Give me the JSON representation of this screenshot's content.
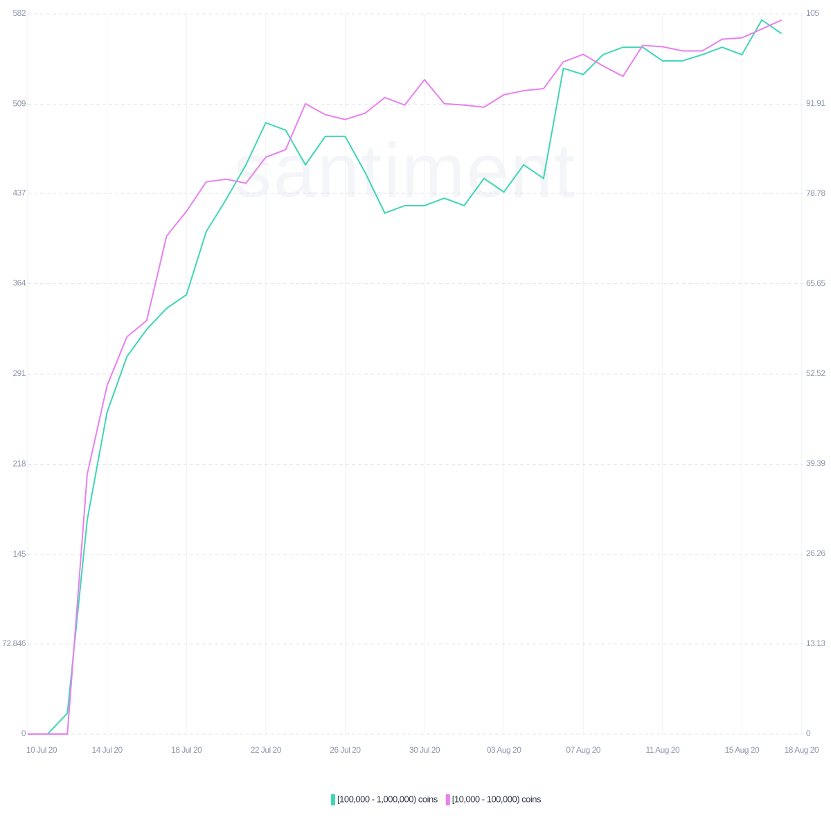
{
  "chart_data": {
    "type": "line",
    "watermark": "santiment",
    "categories": [
      "10 Jul 20",
      null,
      null,
      null,
      "14 Jul 20",
      null,
      null,
      null,
      "18 Jul 20",
      null,
      null,
      null,
      "22 Jul 20",
      null,
      null,
      null,
      "26 Jul 20",
      null,
      null,
      null,
      "30 Jul 20",
      null,
      null,
      null,
      "03 Aug 20",
      null,
      null,
      null,
      "07 Aug 20",
      null,
      null,
      null,
      "11 Aug 20",
      null,
      null,
      null,
      "15 Aug 20",
      null,
      null,
      "18 Aug 20"
    ],
    "series": [
      {
        "name": "[100,000 - 1,000,000) coins",
        "color": "#3ed6b5",
        "values": [
          0,
          0,
          16.8,
          173,
          260,
          305,
          327,
          344,
          355,
          406,
          432,
          460,
          494,
          488,
          460,
          483,
          483,
          454,
          421,
          427,
          427,
          433,
          427,
          449,
          438,
          460,
          449,
          538,
          533,
          549,
          555,
          555,
          544,
          544,
          549,
          555,
          549,
          577,
          566,
          null
        ]
      },
      {
        "name": "[10,000 - 100,000) coins",
        "color": "#e97ff0",
        "axis": "y2",
        "values": [
          0,
          0,
          0,
          37.9,
          50.8,
          57.9,
          60.3,
          72.6,
          76.2,
          80.5,
          80.9,
          80.3,
          84.1,
          85.2,
          91.9,
          90.3,
          89.6,
          90.5,
          92.8,
          91.7,
          95.4,
          91.9,
          91.7,
          91.4,
          93.2,
          93.8,
          94.1,
          98.0,
          99.1,
          97.4,
          95.9,
          100.4,
          100.2,
          99.6,
          99.6,
          101.3,
          101.5,
          102.8,
          104.1,
          null
        ]
      }
    ],
    "ylim": [
      0,
      582
    ],
    "yticks": [
      0,
      72.846,
      145,
      218,
      291,
      364,
      437,
      509,
      582
    ],
    "y2lim": [
      0,
      105
    ],
    "y2ticks": [
      0,
      13.13,
      26.26,
      39.39,
      52.52,
      65.65,
      78.78,
      91.91,
      105
    ],
    "grid": true
  }
}
